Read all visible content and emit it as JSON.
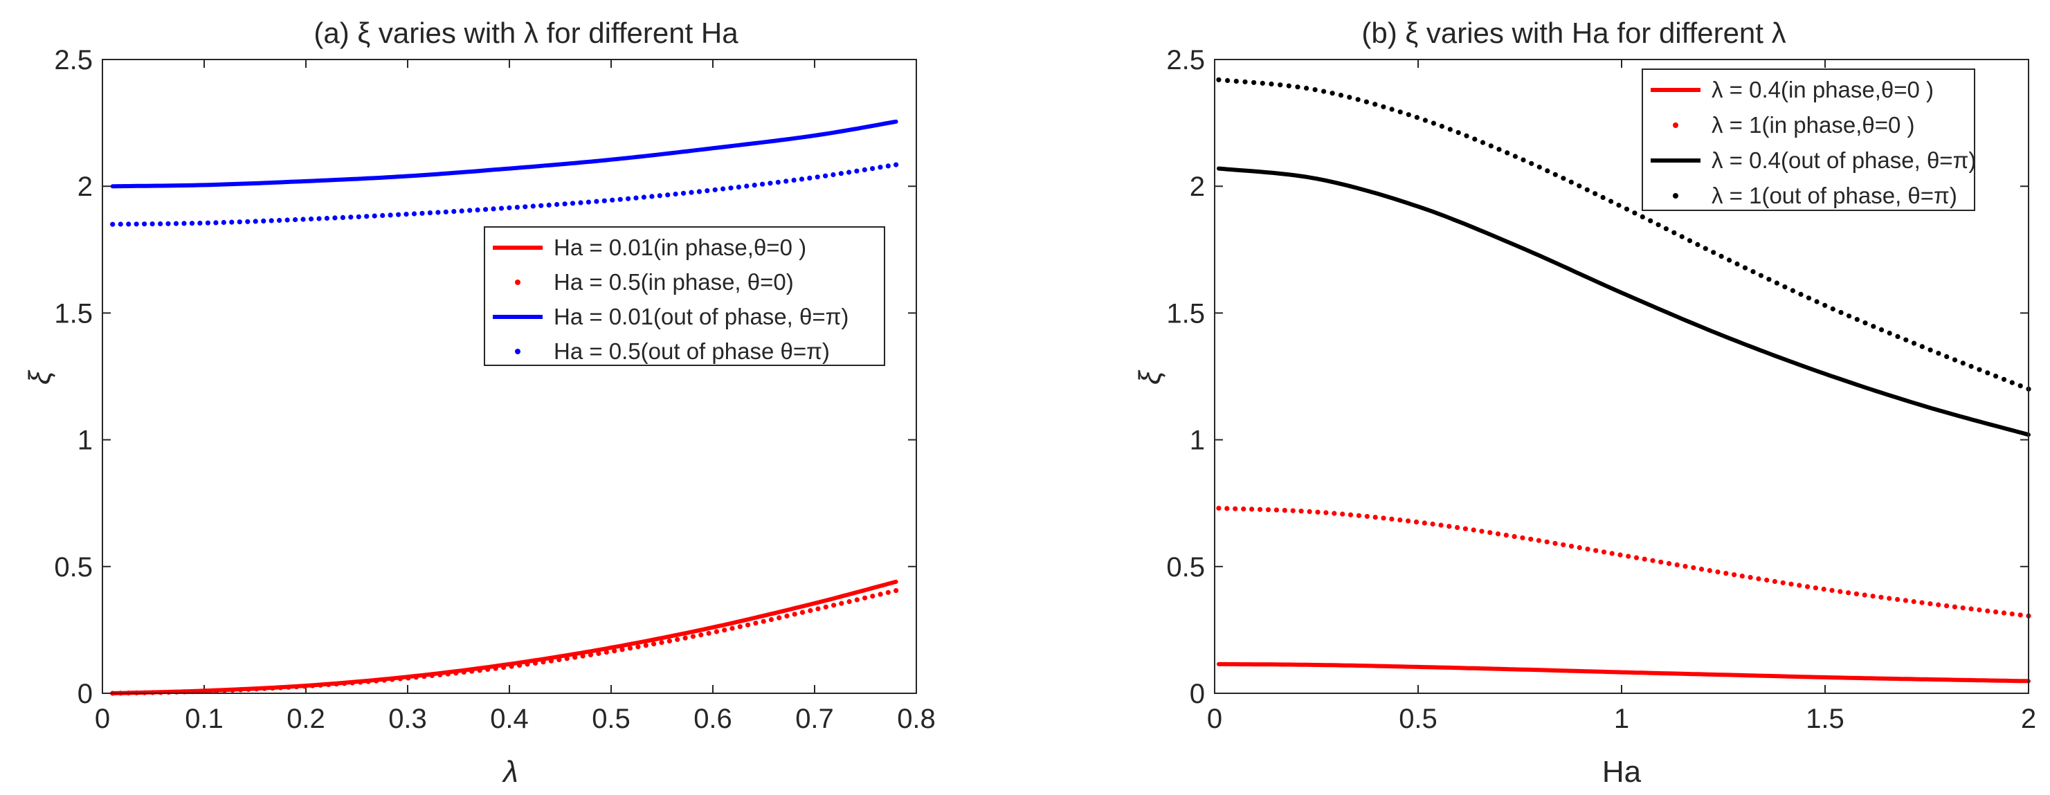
{
  "chart_data": [
    {
      "type": "line",
      "title": "(a) ξ varies with λ for different Ha",
      "xlabel": "λ",
      "ylabel": "ξ",
      "xlim": [
        0,
        0.8
      ],
      "ylim": [
        0,
        2.5
      ],
      "xticks": [
        "0",
        "0.1",
        "0.2",
        "0.3",
        "0.4",
        "0.5",
        "0.6",
        "0.7",
        "0.8"
      ],
      "yticks": [
        "0",
        "0.5",
        "1",
        "1.5",
        "2",
        "2.5"
      ],
      "legend_position": "center-right",
      "series": [
        {
          "name": "Ha = 0.01(in phase,θ=0 )",
          "color": "#ff0000",
          "style": "solid",
          "x": [
            0.01,
            0.1,
            0.2,
            0.3,
            0.4,
            0.5,
            0.6,
            0.7,
            0.78
          ],
          "y": [
            0.0,
            0.01,
            0.03,
            0.065,
            0.115,
            0.18,
            0.26,
            0.355,
            0.44
          ]
        },
        {
          "name": "Ha = 0.5(in phase, θ=0)",
          "color": "#ff0000",
          "style": "dotted",
          "x": [
            0.01,
            0.1,
            0.2,
            0.3,
            0.4,
            0.5,
            0.6,
            0.7,
            0.78
          ],
          "y": [
            0.0,
            0.008,
            0.028,
            0.06,
            0.105,
            0.165,
            0.24,
            0.33,
            0.405
          ]
        },
        {
          "name": "Ha = 0.01(out of phase, θ=π)",
          "color": "#0000ff",
          "style": "solid",
          "x": [
            0.01,
            0.1,
            0.2,
            0.3,
            0.4,
            0.5,
            0.6,
            0.7,
            0.78
          ],
          "y": [
            2.0,
            2.005,
            2.02,
            2.04,
            2.07,
            2.105,
            2.15,
            2.2,
            2.255
          ]
        },
        {
          "name": "Ha = 0.5(out of phase θ=π)",
          "color": "#0000ff",
          "style": "dotted",
          "x": [
            0.01,
            0.1,
            0.2,
            0.3,
            0.4,
            0.5,
            0.6,
            0.7,
            0.78
          ],
          "y": [
            1.85,
            1.855,
            1.87,
            1.89,
            1.915,
            1.945,
            1.985,
            2.035,
            2.085
          ]
        }
      ]
    },
    {
      "type": "line",
      "title": "(b) ξ varies with Ha for different λ",
      "xlabel": "Ha",
      "ylabel": "ξ",
      "xlim": [
        0,
        2
      ],
      "ylim": [
        0,
        2.5
      ],
      "xticks": [
        "0",
        "0.5",
        "1",
        "1.5",
        "2"
      ],
      "yticks": [
        "0",
        "0.5",
        "1",
        "1.5",
        "2",
        "2.5"
      ],
      "legend_position": "top-right",
      "series": [
        {
          "name": "λ = 0.4(in phase,θ=0 )",
          "color": "#ff0000",
          "style": "solid",
          "x": [
            0.01,
            0.25,
            0.5,
            0.75,
            1.0,
            1.25,
            1.5,
            1.75,
            2.0
          ],
          "y": [
            0.115,
            0.112,
            0.104,
            0.094,
            0.083,
            0.073,
            0.063,
            0.055,
            0.048
          ]
        },
        {
          "name": "λ = 1(in phase,θ=0 )",
          "color": "#ff0000",
          "style": "dotted",
          "x": [
            0.01,
            0.25,
            0.5,
            0.75,
            1.0,
            1.25,
            1.5,
            1.75,
            2.0
          ],
          "y": [
            0.73,
            0.715,
            0.675,
            0.615,
            0.545,
            0.475,
            0.41,
            0.355,
            0.305
          ]
        },
        {
          "name": "λ = 0.4(out of phase, θ=π)",
          "color": "#000000",
          "style": "solid",
          "x": [
            0.01,
            0.25,
            0.5,
            0.75,
            1.0,
            1.25,
            1.5,
            1.75,
            2.0
          ],
          "y": [
            2.07,
            2.03,
            1.92,
            1.76,
            1.58,
            1.41,
            1.26,
            1.13,
            1.02
          ]
        },
        {
          "name": "λ = 1(out of phase, θ=π)",
          "color": "#000000",
          "style": "dotted",
          "x": [
            0.01,
            0.25,
            0.5,
            0.75,
            1.0,
            1.25,
            1.5,
            1.75,
            2.0
          ],
          "y": [
            2.42,
            2.38,
            2.27,
            2.11,
            1.92,
            1.72,
            1.53,
            1.36,
            1.2
          ]
        }
      ]
    }
  ]
}
